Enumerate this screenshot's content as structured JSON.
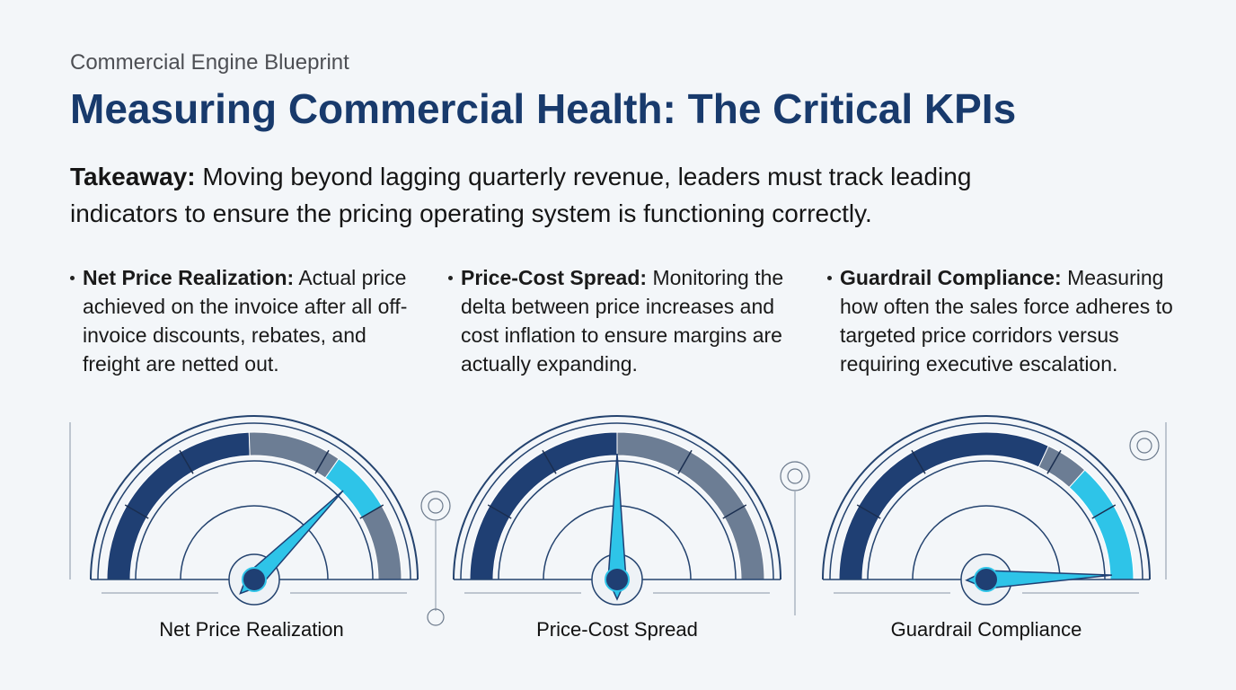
{
  "header": {
    "eyebrow": "Commercial Engine Blueprint",
    "title": "Measuring Commercial Health: The Critical KPIs"
  },
  "takeaway": {
    "label": "Takeaway:",
    "text": "Moving beyond lagging quarterly revenue, leaders must track leading indicators to ensure the pricing operating system is functioning correctly."
  },
  "kpis": [
    {
      "label": "Net Price Realization:",
      "description": "Actual price achieved on the invoice after all off-invoice discounts, rebates, and freight are netted out.",
      "gauge_label": "Net Price Realization"
    },
    {
      "label": "Price-Cost Spread:",
      "description": "Monitoring the delta between price increases and cost inflation to ensure margins are actually expanding.",
      "gauge_label": "Price-Cost Spread"
    },
    {
      "label": "Guardrail Compliance:",
      "description": "Measuring how often the sales force adheres to targeted price corridors versus requiring executive escalation.",
      "gauge_label": "Guardrail Compliance"
    }
  ]
}
